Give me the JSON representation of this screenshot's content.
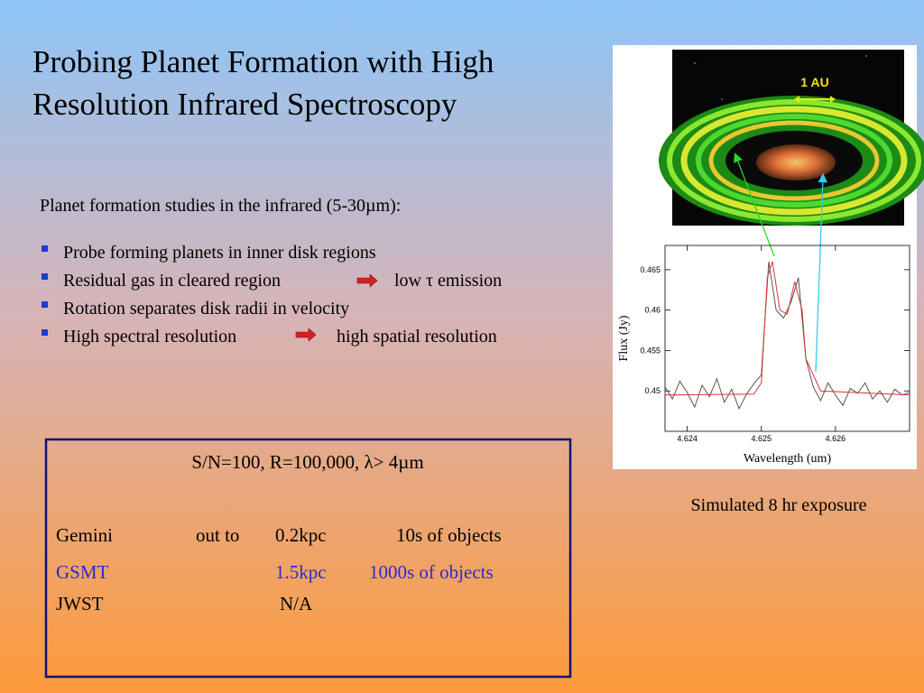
{
  "title": [
    "Probing Planet Formation with High",
    "Resolution Infrared Spectroscopy"
  ],
  "intro": "Planet formation studies in the infrared (5-30µm):",
  "bullets": [
    [
      "Probe forming planets in inner disk regions"
    ],
    [
      "Residual gas in cleared region",
      "low  τ emission"
    ],
    [
      "Rotation separates disk radii in velocity"
    ],
    [
      "High spectral resolution",
      "high spatial resolution"
    ]
  ],
  "box": {
    "header": "S/N=100, R=100,000, λ> 4µm",
    "rows": [
      {
        "name": "Gemini",
        "reach": "out to",
        "distance": "0.2kpc",
        "count": "10s of objects"
      },
      {
        "name": "GSMT",
        "distance": "1.5kpc",
        "count": "1000s of objects"
      },
      {
        "name": "JWST",
        "distance": "N/A"
      }
    ]
  },
  "figure": {
    "label": "1 AU",
    "caption": "Simulated 8 hr exposure"
  },
  "chart_data": {
    "type": "line",
    "xlabel": "Wavelength (um)",
    "ylabel": "Flux (Jy)",
    "xlim": [
      4.6237,
      4.627
    ],
    "ylim": [
      0.445,
      0.468
    ],
    "xticks": [
      4.624,
      4.625,
      4.626
    ],
    "yticks": [
      0.45,
      0.455,
      0.46,
      0.465
    ],
    "series": [
      {
        "color": "#555555",
        "x": [
          4.6237,
          4.6238,
          4.6239,
          4.624,
          4.6241,
          4.6242,
          4.6243,
          4.6244,
          4.6245,
          4.6246,
          4.6247,
          4.6248,
          4.6249,
          4.625,
          4.6251,
          4.6252,
          4.6253,
          4.6254,
          4.6255,
          4.6256,
          4.6257,
          4.6258,
          4.6259,
          4.626,
          4.6261,
          4.6262,
          4.6263,
          4.6264,
          4.6265,
          4.6266,
          4.6267,
          4.6268,
          4.6269,
          4.627
        ],
        "values": [
          0.4505,
          0.449,
          0.4512,
          0.4498,
          0.448,
          0.4507,
          0.4493,
          0.4515,
          0.4486,
          0.4502,
          0.4478,
          0.4496,
          0.4509,
          0.452,
          0.466,
          0.46,
          0.459,
          0.461,
          0.464,
          0.454,
          0.4505,
          0.4488,
          0.451,
          0.4495,
          0.4482,
          0.4503,
          0.4497,
          0.451,
          0.449,
          0.45,
          0.4486,
          0.4502,
          0.4495,
          0.4498
        ]
      },
      {
        "color": "#e03030",
        "x": [
          4.6237,
          4.6249,
          4.625,
          4.62508,
          4.62515,
          4.62525,
          4.62535,
          4.62545,
          4.62555,
          4.6256,
          4.6258,
          4.627
        ],
        "values": [
          0.4495,
          0.4496,
          0.451,
          0.464,
          0.466,
          0.46,
          0.4595,
          0.4635,
          0.46,
          0.454,
          0.45,
          0.4495
        ]
      }
    ]
  }
}
